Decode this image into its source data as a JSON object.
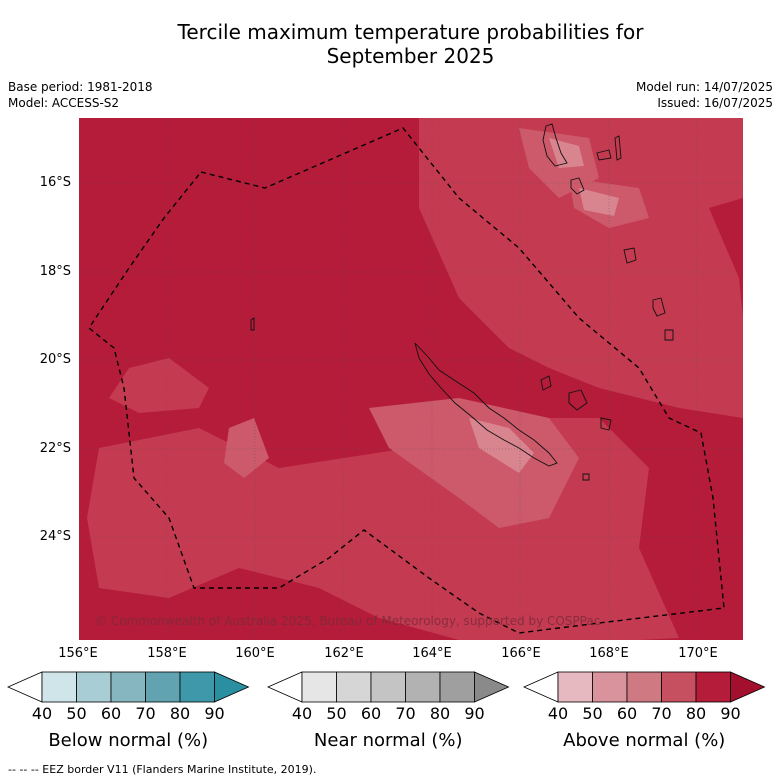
{
  "title_line1": "Tercile maximum temperature probabilities for",
  "title_line2": "September 2025",
  "base_period": "Base period: 1981-2018",
  "model": "Model: ACCESS-S2",
  "model_run": "Model run: 14/07/2025",
  "issued": "Issued: 16/07/2025",
  "copyright": "© Commonwealth of Australia 2025, Bureau of Meteorology, supported by COSPPac",
  "footnote": "--  --  -- EEZ border V11 (Flanders Marine Institute, 2019).",
  "lat_labels": [
    "16°S",
    "18°S",
    "20°S",
    "22°S",
    "24°S"
  ],
  "lon_labels": [
    "156°E",
    "158°E",
    "160°E",
    "162°E",
    "164°E",
    "166°E",
    "168°E",
    "170°E"
  ],
  "colorbars": [
    {
      "label": "Below normal (%)",
      "ticks": [
        "40",
        "50",
        "60",
        "70",
        "80",
        "90"
      ],
      "colors": [
        "#cfe5ea",
        "#a8cdd4",
        "#86b7c0",
        "#62a3b1",
        "#3f98a9",
        "#2a8fa0"
      ]
    },
    {
      "label": "Near normal (%)",
      "ticks": [
        "40",
        "50",
        "60",
        "70",
        "80",
        "90"
      ],
      "colors": [
        "#e6e6e6",
        "#d6d6d6",
        "#c4c4c4",
        "#b2b2b2",
        "#9f9f9f",
        "#8a8a8a"
      ]
    },
    {
      "label": "Above normal (%)",
      "ticks": [
        "40",
        "50",
        "60",
        "70",
        "80",
        "90"
      ],
      "colors": [
        "#e6b8c0",
        "#d9939d",
        "#cf7a83",
        "#c65060",
        "#b41c3a",
        "#a3102e"
      ]
    }
  ],
  "map_colors": {
    "above_80": "#b41c3a",
    "above_70": "#c43a50",
    "above_60": "#d06a78",
    "above_50": "#dc95a0"
  }
}
